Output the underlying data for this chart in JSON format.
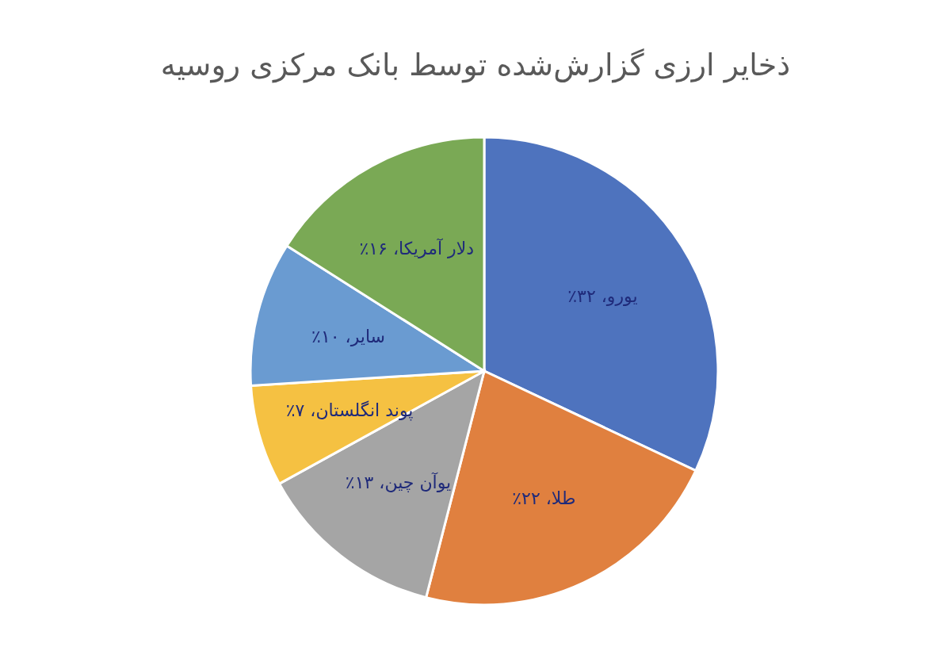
{
  "chart_data": {
    "type": "pie",
    "title": "ذخایر ارزی گزارش‌شده توسط بانک مرکزی روسیه",
    "categories": [
      "یورو",
      "طلا",
      "یوآن چین",
      "پوند انگلستان",
      "سایر",
      "دلار آمریکا"
    ],
    "values": [
      32,
      22,
      13,
      7,
      10,
      16
    ],
    "value_labels": [
      "، ۳۲٪",
      "، ۲۲٪",
      "، ۱۳٪",
      "، ۷٪",
      "، ۱۰٪",
      "، ۱۶٪"
    ],
    "colors": [
      "#4e73be",
      "#e0803f",
      "#a5a5a5",
      "#f5c142",
      "#6a9bd1",
      "#7aa955"
    ],
    "legend": false
  }
}
